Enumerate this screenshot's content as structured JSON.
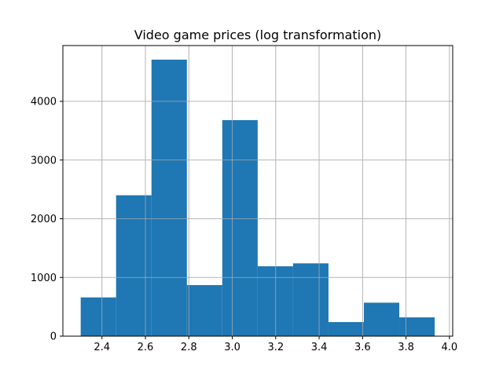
{
  "chart_data": {
    "type": "bar",
    "title": "Video game prices (log transformation)",
    "xlabel": "",
    "ylabel": "",
    "bin_edges": [
      2.302,
      2.465,
      2.628,
      2.791,
      2.954,
      3.117,
      3.28,
      3.443,
      3.606,
      3.769,
      3.932
    ],
    "counts": [
      660,
      2400,
      4710,
      870,
      3680,
      1190,
      1240,
      240,
      570,
      320
    ],
    "xlim": [
      2.22,
      4.015
    ],
    "ylim": [
      0,
      4950
    ],
    "x_ticks": [
      2.4,
      2.6,
      2.8,
      3.0,
      3.2,
      3.4,
      3.6,
      3.8,
      4.0
    ],
    "x_tick_labels": [
      "2.4",
      "2.6",
      "2.8",
      "3.0",
      "3.2",
      "3.4",
      "3.6",
      "3.8",
      "4.0"
    ],
    "y_ticks": [
      0,
      1000,
      2000,
      3000,
      4000
    ],
    "y_tick_labels": [
      "0",
      "1000",
      "2000",
      "3000",
      "4000"
    ],
    "grid": true,
    "bar_color": "#1f77b4",
    "grid_color": "#b0b0b0"
  }
}
